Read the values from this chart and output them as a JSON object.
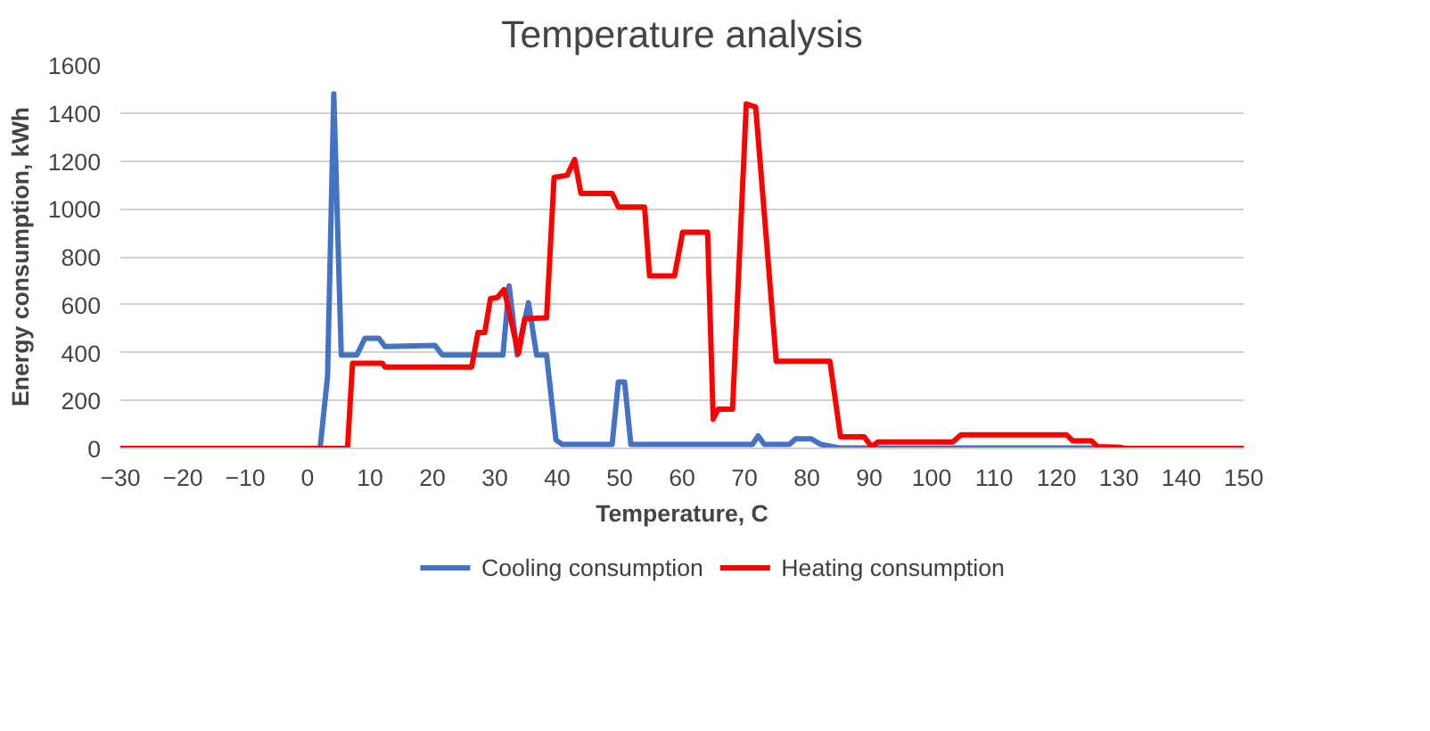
{
  "chart_data": {
    "type": "line",
    "title": "Temperature analysis",
    "xlabel": "Temperature, C",
    "ylabel": "Energy consumption, kWh",
    "xlim": [
      -30,
      150
    ],
    "xticks": [
      -30,
      -20,
      -10,
      0,
      10,
      20,
      30,
      40,
      50,
      60,
      70,
      80,
      90,
      100,
      110,
      120,
      130,
      140,
      150
    ],
    "ylim": [
      0,
      1600
    ],
    "yticks": [
      0,
      200,
      400,
      600,
      800,
      1000,
      1200,
      1400,
      1600
    ],
    "grid": "y",
    "legend": "bottom",
    "marker": "none",
    "line_style": "solid",
    "series": [
      {
        "name": "Cooling consumption",
        "color": "#4472c4",
        "x": [
          -30,
          2,
          3.2,
          4.2,
          5.4,
          7.9,
          9.2,
          11.4,
          12.4,
          20.4,
          21.6,
          31.3,
          32.3,
          33.6,
          35.4,
          36.7,
          38.3,
          39.8,
          40.8,
          48.8,
          49.8,
          50.8,
          51.8,
          71.3,
          72.2,
          73.2,
          77.2,
          78.2,
          80.7,
          82.2,
          85.2,
          126
        ],
        "values": [
          0,
          0,
          300,
          1480,
          390,
          390,
          460,
          460,
          425,
          430,
          390,
          390,
          678,
          390,
          608,
          390,
          390,
          35,
          17,
          17,
          277,
          277,
          17,
          17,
          52,
          17,
          17,
          40,
          40,
          17,
          2,
          2
        ]
      },
      {
        "name": "Heating consumption",
        "color": "#ff0000",
        "x": [
          -30,
          6.4,
          7.2,
          12,
          12.4,
          26.3,
          27.3,
          28.4,
          29.3,
          30.4,
          31.5,
          33.8,
          34.8,
          38.3,
          39.5,
          41.6,
          42.8,
          43.8,
          48.8,
          49.8,
          54,
          54.8,
          58.8,
          60.1,
          64.1,
          65,
          65.8,
          68.1,
          70.3,
          71.8,
          75.1,
          83.7,
          85.4,
          89.2,
          90.4,
          91.4,
          103.4,
          104.7,
          121.6,
          122.6,
          125.6,
          126.6,
          130.1,
          131,
          150
        ],
        "values": [
          0,
          0,
          355,
          355,
          340,
          340,
          484,
          484,
          625,
          630,
          663,
          396,
          541,
          545,
          1131,
          1140,
          1206,
          1064,
          1064,
          1007,
          1007,
          720,
          720,
          902,
          902,
          122,
          164,
          164,
          1438,
          1425,
          364,
          364,
          48,
          48,
          7,
          27,
          27,
          57,
          57,
          32,
          32,
          7,
          5,
          0,
          0
        ]
      }
    ]
  }
}
